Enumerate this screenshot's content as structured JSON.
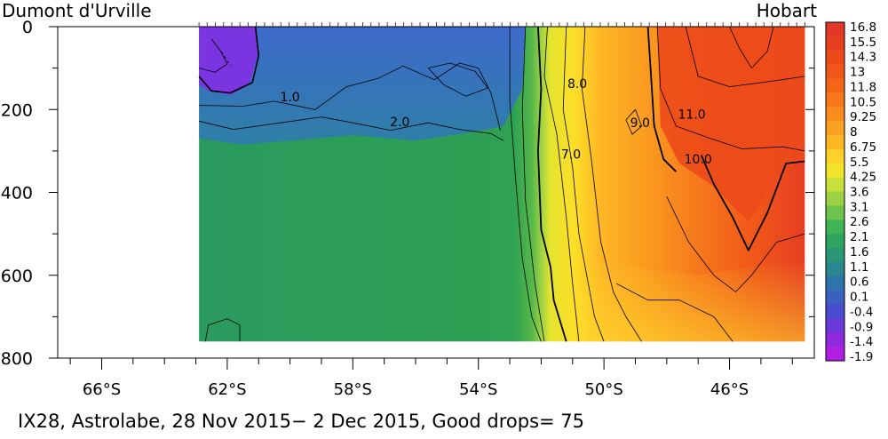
{
  "header": {
    "left_station": "Dumont d'Urville",
    "right_station": "Hobart"
  },
  "footer": {
    "caption": "IX28, Astrolabe, 28 Nov 2015− 2 Dec 2015, Good drops= 75"
  },
  "chart_data": {
    "type": "heatmap",
    "title": "",
    "xlabel": "",
    "ylabel": "",
    "x_ticks": [
      {
        "value": -66,
        "label": "66°S"
      },
      {
        "value": -62,
        "label": "62°S"
      },
      {
        "value": -58,
        "label": "58°S"
      },
      {
        "value": -54,
        "label": "54°S"
      },
      {
        "value": -50,
        "label": "50°S"
      },
      {
        "value": -46,
        "label": "46°S"
      }
    ],
    "x_minor_ticks": [
      -67,
      -65,
      -64,
      -63,
      -61,
      -60,
      -59,
      -57,
      -56,
      -55,
      -53,
      -52,
      -51,
      -49,
      -48,
      -47,
      -45,
      -44
    ],
    "xlim": [
      -67.4,
      -43.3
    ],
    "ylim": [
      800,
      0
    ],
    "y_ticks": [
      {
        "value": 0,
        "label": "0"
      },
      {
        "value": 200,
        "label": "200"
      },
      {
        "value": 400,
        "label": "400"
      },
      {
        "value": 600,
        "label": "600"
      },
      {
        "value": 800,
        "label": "800"
      }
    ],
    "y_minor_ticks": [
      100,
      300,
      500,
      700
    ],
    "data_extent": {
      "lat_start": -62.9,
      "lat_end": -43.6,
      "depth_max": 760
    },
    "colorbar_labels": [
      "16.8",
      "15.5",
      "14.3",
      "13",
      "11.8",
      "10.5",
      "9.25",
      "8",
      "6.75",
      "5.5",
      "4.25",
      "3.6",
      "3.1",
      "2.6",
      "2.1",
      "1.6",
      "1.1",
      "0.6",
      "0.1",
      "-0.4",
      "-0.9",
      "-1.4",
      "-1.9"
    ],
    "colorbar_colors": [
      "#e23828",
      "#e8401e",
      "#ec4a18",
      "#f05618",
      "#f4661a",
      "#f8781c",
      "#fa8c1e",
      "#fca222",
      "#feb824",
      "#fcd128",
      "#f2e42a",
      "#c8e03a",
      "#9cd244",
      "#6cc44c",
      "#40b454",
      "#2ea45e",
      "#2a9676",
      "#2a8690",
      "#2e74aa",
      "#3a60c0",
      "#4a4cd0",
      "#6a3ad8",
      "#9028e0",
      "#b020e4"
    ],
    "contour_labels": [
      {
        "text": "1.0",
        "lat": -60.0,
        "depth": 180
      },
      {
        "text": "2.0",
        "lat": -56.5,
        "depth": 240
      },
      {
        "text": "8.0",
        "lat": -50.85,
        "depth": 148
      },
      {
        "text": "7.0",
        "lat": -51.05,
        "depth": 318
      },
      {
        "text": "9.0",
        "lat": -48.85,
        "depth": 242
      },
      {
        "text": "11.0",
        "lat": -47.2,
        "depth": 222
      },
      {
        "text": "10.0",
        "lat": -47.0,
        "depth": 330
      }
    ]
  }
}
